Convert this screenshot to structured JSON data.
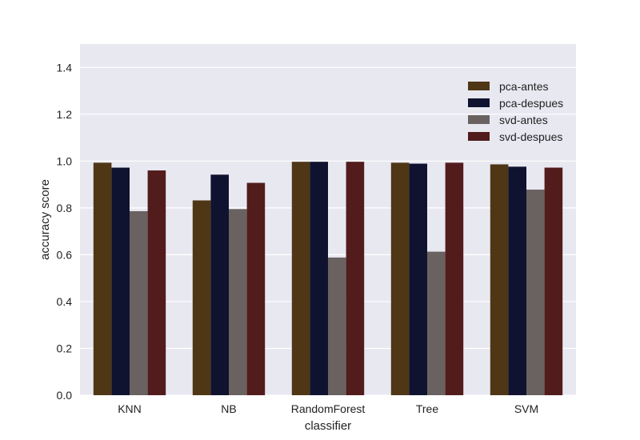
{
  "chart_data": {
    "type": "bar",
    "title": "",
    "xlabel": "classifier",
    "ylabel": "accuracy score",
    "categories": [
      "KNN",
      "NB",
      "RandomForest",
      "Tree",
      "SVM"
    ],
    "ylim": [
      0,
      1.5
    ],
    "yticks": [
      0.0,
      0.2,
      0.4,
      0.6,
      0.8,
      1.0,
      1.2,
      1.4
    ],
    "ytick_labels": [
      "0.0",
      "0.2",
      "0.4",
      "0.6",
      "0.8",
      "1.0",
      "1.2",
      "1.4"
    ],
    "grid": true,
    "legend_position": "top-right",
    "series": [
      {
        "name": "pca-antes",
        "color": "#4f3716",
        "values": [
          0.993,
          0.832,
          0.997,
          0.993,
          0.986
        ]
      },
      {
        "name": "pca-despues",
        "color": "#10132f",
        "values": [
          0.972,
          0.942,
          0.997,
          0.989,
          0.976
        ]
      },
      {
        "name": "svd-antes",
        "color": "#6a6260",
        "values": [
          0.786,
          0.795,
          0.588,
          0.613,
          0.878
        ]
      },
      {
        "name": "svd-despues",
        "color": "#521c1d",
        "values": [
          0.96,
          0.907,
          0.997,
          0.993,
          0.972
        ]
      }
    ],
    "colors": {
      "plot_background": "#e8e8f1",
      "gridline": "#ffffff"
    }
  }
}
